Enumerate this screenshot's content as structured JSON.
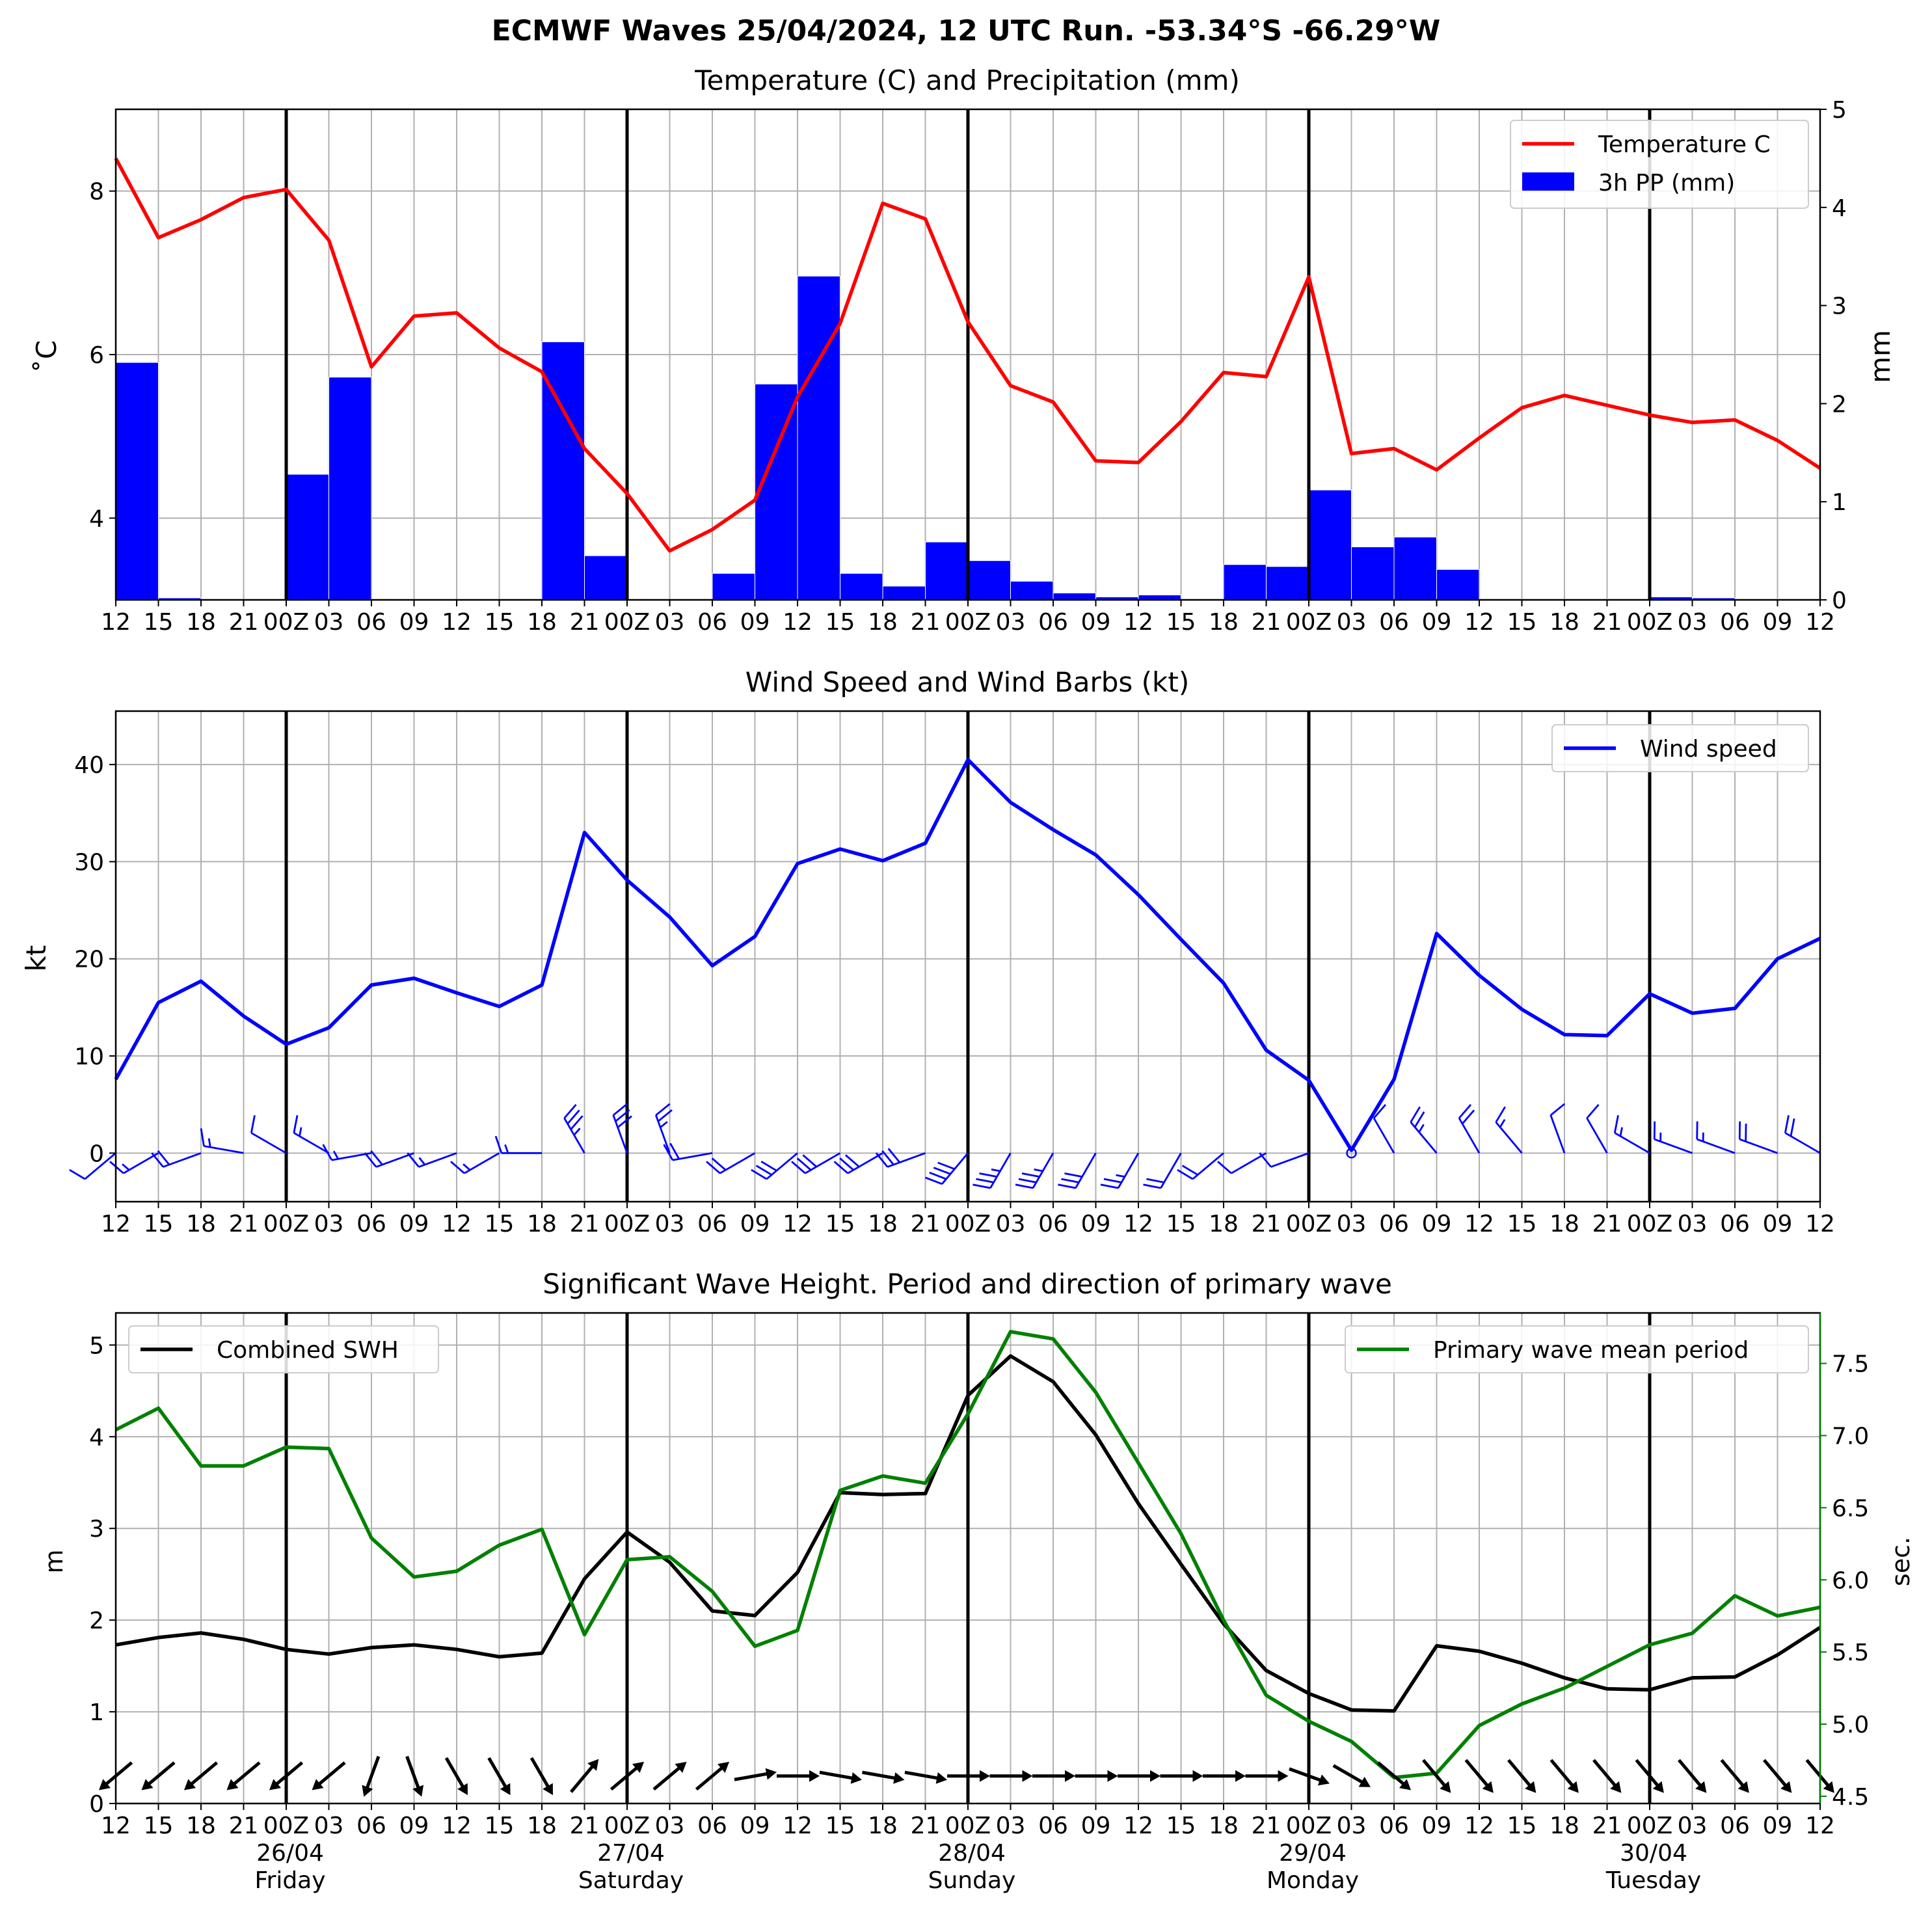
{
  "suptitle": "ECMWF Waves 25/04/2024, 12 UTC Run. -53.34°S -66.29°W",
  "colors": {
    "temperature": "#ff0000",
    "precip": "#0000ff",
    "wind": "#0000ff",
    "swh": "#000000",
    "period": "#008000",
    "grid": "#b0b0b0",
    "day_line": "#000000"
  },
  "time_ticks": [
    "12",
    "15",
    "18",
    "21",
    "00Z",
    "03",
    "06",
    "09",
    "12",
    "15",
    "18",
    "21",
    "00Z",
    "03",
    "06",
    "09",
    "12",
    "15",
    "18",
    "21",
    "00Z",
    "03",
    "06",
    "09",
    "12",
    "15",
    "18",
    "21",
    "00Z",
    "03",
    "06",
    "09",
    "12",
    "15",
    "18",
    "21",
    "00Z",
    "03",
    "06",
    "09",
    "12"
  ],
  "day_labels": [
    {
      "date": "26/04",
      "day": "Friday"
    },
    {
      "date": "27/04",
      "day": "Saturday"
    },
    {
      "date": "28/04",
      "day": "Sunday"
    },
    {
      "date": "29/04",
      "day": "Monday"
    },
    {
      "date": "30/04",
      "day": "Tuesday"
    }
  ],
  "chart_data": [
    {
      "type": "line",
      "title": "Temperature (C) and Precipitation (mm)",
      "ylabel": "˚C",
      "ylabel_right": "mm",
      "ylim": [
        3.0,
        9.0
      ],
      "yticks": [
        4,
        6,
        8
      ],
      "ylim_right": [
        0,
        5
      ],
      "yticks_right": [
        0,
        1,
        2,
        3,
        4,
        5
      ],
      "legend": "top-right",
      "grid": true,
      "series": [
        {
          "name": "Temperature C",
          "axis": "left",
          "type": "line",
          "values": [
            8.4,
            7.43,
            7.65,
            7.92,
            8.02,
            7.4,
            5.85,
            6.47,
            6.51,
            6.08,
            5.79,
            4.85,
            4.3,
            3.6,
            3.86,
            4.22,
            5.48,
            6.38,
            7.85,
            7.66,
            6.4,
            5.62,
            5.42,
            4.7,
            4.68,
            5.18,
            5.78,
            5.73,
            6.95,
            4.79,
            4.85,
            4.59,
            4.98,
            5.35,
            5.5,
            5.38,
            5.26,
            5.17,
            5.2,
            4.95,
            4.61
          ]
        },
        {
          "name": "3h PP (mm)",
          "axis": "right",
          "type": "bar",
          "values": [
            2.42,
            0.02,
            0,
            0,
            1.28,
            2.27,
            0,
            0,
            0,
            0,
            2.63,
            0.45,
            0,
            0,
            0.27,
            2.2,
            3.3,
            0.27,
            0.14,
            0.59,
            0.4,
            0.19,
            0.07,
            0.03,
            0.05,
            0,
            0.36,
            0.34,
            1.12,
            0.54,
            0.64,
            0.31,
            0.01,
            0,
            0,
            0.01,
            0.03,
            0.02,
            0,
            0.01
          ]
        }
      ]
    },
    {
      "type": "line",
      "title": "Wind Speed and Wind Barbs (kt)",
      "ylabel": "kt",
      "ylim": [
        -5,
        45.5
      ],
      "yticks": [
        0,
        10,
        20,
        30,
        40
      ],
      "legend": "top-right",
      "grid": true,
      "series": [
        {
          "name": "Wind speed",
          "values": [
            7.6,
            15.5,
            17.7,
            14.1,
            11.2,
            12.9,
            17.3,
            18.0,
            16.5,
            15.1,
            17.3,
            33.0,
            28.1,
            24.3,
            19.3,
            22.3,
            29.8,
            31.3,
            30.1,
            31.9,
            40.5,
            36.1,
            33.3,
            30.7,
            26.6,
            22.0,
            17.5,
            10.6,
            7.5,
            0.3,
            7.6,
            22.6,
            18.3,
            14.8,
            12.2,
            12.1,
            16.4,
            14.4,
            14.9,
            20.0,
            22.1
          ]
        },
        {
          "name": "barb_direction_deg",
          "values": [
            230,
            240,
            250,
            280,
            300,
            300,
            260,
            250,
            250,
            240,
            270,
            330,
            340,
            340,
            260,
            240,
            230,
            240,
            240,
            250,
            220,
            210,
            210,
            210,
            210,
            210,
            230,
            240,
            250,
            0,
            330,
            320,
            330,
            320,
            340,
            330,
            300,
            290,
            290,
            290,
            300
          ]
        }
      ]
    },
    {
      "type": "line",
      "title": "Significant Wave Height. Period and direction of primary wave",
      "ylabel": "m",
      "ylabel_right": "sec.",
      "ylim": [
        0,
        5.35
      ],
      "yticks": [
        0,
        1,
        2,
        3,
        4,
        5
      ],
      "ylim_right": [
        4.45,
        7.85
      ],
      "yticks_right": [
        4.5,
        5.0,
        5.5,
        6.0,
        6.5,
        7.0,
        7.5
      ],
      "legend": "top-left and top-right",
      "grid": true,
      "series": [
        {
          "name": "Combined SWH",
          "axis": "left",
          "values": [
            1.73,
            1.81,
            1.86,
            1.79,
            1.68,
            1.63,
            1.7,
            1.73,
            1.68,
            1.6,
            1.64,
            2.45,
            2.96,
            2.63,
            2.1,
            2.05,
            2.52,
            3.39,
            3.37,
            3.38,
            4.45,
            4.88,
            4.6,
            4.02,
            3.27,
            2.61,
            1.96,
            1.45,
            1.2,
            1.02,
            1.01,
            1.72,
            1.66,
            1.53,
            1.37,
            1.25,
            1.24,
            1.37,
            1.38,
            1.62,
            1.92
          ]
        },
        {
          "name": "Primary wave mean period",
          "axis": "right",
          "values": [
            7.04,
            7.19,
            6.79,
            6.79,
            6.92,
            6.91,
            6.29,
            6.02,
            6.06,
            6.24,
            6.35,
            5.62,
            6.14,
            6.16,
            5.92,
            5.54,
            5.65,
            6.62,
            6.72,
            6.67,
            7.15,
            7.72,
            7.67,
            7.3,
            6.81,
            6.32,
            5.72,
            5.2,
            5.02,
            4.88,
            4.63,
            4.66,
            4.99,
            5.14,
            5.25,
            5.4,
            5.55,
            5.63,
            5.89,
            5.75,
            5.81
          ]
        },
        {
          "name": "primary_wave_direction_deg",
          "values": [
            50,
            50,
            50,
            50,
            50,
            50,
            20,
            340,
            330,
            330,
            330,
            220,
            230,
            230,
            230,
            260,
            270,
            280,
            280,
            280,
            270,
            270,
            270,
            270,
            270,
            270,
            270,
            270,
            290,
            300,
            310,
            320,
            320,
            320,
            320,
            320,
            320,
            320,
            320,
            320,
            320
          ]
        }
      ]
    }
  ]
}
